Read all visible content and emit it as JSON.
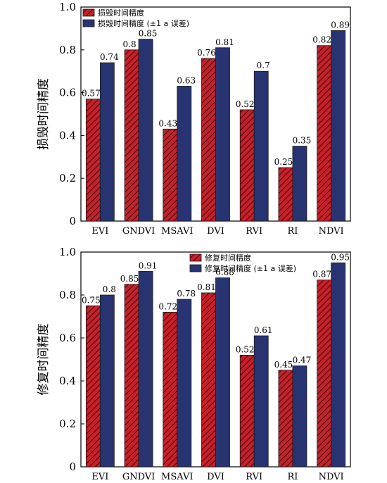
{
  "colors": {
    "series_a": "#c8202a",
    "series_a_hatch": "#3a0a0a",
    "series_b": "#283472",
    "axis": "#000000"
  },
  "chart_data": [
    {
      "type": "bar",
      "categories": [
        "EVI",
        "GNDVI",
        "MSAVI",
        "DVI",
        "RVI",
        "RI",
        "NDVI"
      ],
      "ylabel": "损毁时间精度",
      "ylim": [
        0,
        1.0
      ],
      "yticks": [
        "0",
        "0.2",
        "0.4",
        "0.6",
        "0.8",
        "1.0"
      ],
      "legend_position": "top-left",
      "series": [
        {
          "name": "损毁时间精度",
          "values": [
            0.57,
            0.8,
            0.43,
            0.76,
            0.52,
            0.25,
            0.82
          ],
          "labels": [
            "0.57",
            "0.8",
            "0.43",
            "0.76",
            "0.52",
            "0.25",
            "0.82"
          ]
        },
        {
          "name": "损毁时间精度 (±1 a 误差)",
          "values": [
            0.74,
            0.85,
            0.63,
            0.81,
            0.7,
            0.35,
            0.89
          ],
          "labels": [
            "0.74",
            "0.85",
            "0.63",
            "0.81",
            "0.7",
            "0.35",
            "0.89"
          ]
        }
      ]
    },
    {
      "type": "bar",
      "categories": [
        "EVI",
        "GNDVI",
        "MSAVI",
        "DVI",
        "RVI",
        "RI",
        "NDVI"
      ],
      "ylabel": "修复时间精度",
      "ylim": [
        0,
        1.0
      ],
      "yticks": [
        "0",
        "0.2",
        "0.4",
        "0.6",
        "0.8",
        "1.0"
      ],
      "legend_position": "top-center",
      "series": [
        {
          "name": "修复时间精度",
          "values": [
            0.75,
            0.85,
            0.72,
            0.81,
            0.52,
            0.45,
            0.87
          ],
          "labels": [
            "0.75",
            "0.85",
            "0.72",
            "0.81",
            "0.52",
            "0.45",
            "0.87"
          ]
        },
        {
          "name": "修复时间精度 (±1 a 误差)",
          "values": [
            0.8,
            0.91,
            0.78,
            0.88,
            0.61,
            0.47,
            0.95
          ],
          "labels": [
            "0.8",
            "0.91",
            "0.78",
            "0.88",
            "0.61",
            "0.47",
            "0.95"
          ]
        }
      ]
    }
  ]
}
